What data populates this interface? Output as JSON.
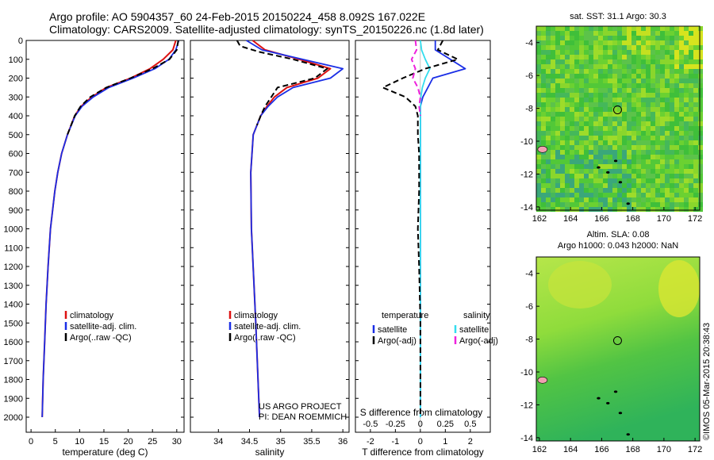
{
  "header": {
    "title_line1": "Argo profile: AO 5904357_60 24-Feb-2015 20150224_458 8.092S 167.022E",
    "title_line2": "Climatology: CARS2009. Satellite-adjusted climatology: synTS_20150226.nc (1.8d later)"
  },
  "credit": {
    "line1": "US ARGO PROJECT",
    "line2": "PI: DEAN ROEMMICH"
  },
  "watermark": "©IMOS 05-Mar-2015 20:38:43",
  "colors": {
    "climatology": "#dd1111",
    "satellite": "#1a2ee6",
    "argo": "#000000",
    "satellite_salinity": "#33ddee",
    "argo_salinity": "#ee22dd"
  },
  "maps": {
    "sst": {
      "title": "sat. SST: 31.1 Argo: 30.3"
    },
    "sla": {
      "title_line1": "Altim. SLA: 0.08",
      "title_line2": "Argo h1000: 0.043 h2000: NaN"
    },
    "xticks": [
      "162",
      "164",
      "166",
      "168",
      "170",
      "172"
    ],
    "yticks": [
      "-4",
      "-6",
      "-8",
      "-10",
      "-12",
      "-14"
    ],
    "float_position": {
      "lon": 167.022,
      "lat": -8.092
    }
  },
  "chart_data": [
    {
      "type": "line",
      "panel": "temperature",
      "xlabel": "temperature (deg C)",
      "ylabel": "",
      "xlim": [
        -1,
        31.5
      ],
      "ylim": [
        2080,
        0
      ],
      "xticks": [
        0,
        5,
        10,
        15,
        20,
        25,
        30
      ],
      "yticks": [
        0,
        100,
        200,
        300,
        400,
        500,
        600,
        700,
        800,
        900,
        1000,
        1100,
        1200,
        1300,
        1400,
        1500,
        1600,
        1700,
        1800,
        1900,
        2000
      ],
      "legend": [
        "climatology",
        "satellite-adj. clim.",
        "Argo(..raw -QC)"
      ],
      "series": [
        {
          "name": "climatology",
          "depth": [
            0,
            50,
            100,
            150,
            200,
            250,
            300,
            350,
            400,
            500,
            600,
            700,
            800,
            1000,
            1200,
            1400,
            1600,
            1800,
            2000
          ],
          "values": [
            29.8,
            29.2,
            27.2,
            24.5,
            20.5,
            15.5,
            12.5,
            10.3,
            9.0,
            7.5,
            6.3,
            5.5,
            4.9,
            4.0,
            3.5,
            3.1,
            2.8,
            2.5,
            2.3
          ]
        },
        {
          "name": "satellite-adj. clim.",
          "depth": [
            0,
            50,
            100,
            150,
            200,
            250,
            300,
            350,
            400,
            500,
            600,
            700,
            800,
            1000,
            1200,
            1400,
            1600,
            1800,
            2000
          ],
          "values": [
            30.4,
            29.8,
            28.4,
            25.5,
            21.0,
            16.0,
            12.8,
            10.5,
            9.1,
            7.5,
            6.3,
            5.5,
            4.9,
            4.0,
            3.5,
            3.1,
            2.8,
            2.5,
            2.3
          ]
        },
        {
          "name": "Argo(..raw -QC)",
          "depth": [
            0,
            50,
            100,
            150,
            200,
            250,
            300,
            350,
            400,
            500
          ],
          "values": [
            30.3,
            30.0,
            28.5,
            25.0,
            20.5,
            15.5,
            12.2,
            10.2,
            9.0,
            7.5
          ]
        }
      ]
    },
    {
      "type": "line",
      "panel": "salinity",
      "xlabel": "salinity",
      "ylabel": "",
      "xlim": [
        33.55,
        36.1
      ],
      "ylim": [
        2080,
        0
      ],
      "xticks": [
        34,
        34.5,
        35,
        35.5,
        36
      ],
      "legend": [
        "climatology",
        "satellite-adj. clim.",
        "Argo(..raw -QC)"
      ],
      "series": [
        {
          "name": "climatology",
          "depth": [
            0,
            50,
            100,
            150,
            200,
            250,
            300,
            350,
            400,
            500,
            700,
            1000,
            1500,
            2000
          ],
          "values": [
            34.55,
            34.75,
            35.3,
            35.8,
            35.6,
            35.1,
            34.9,
            34.78,
            34.68,
            34.56,
            34.52,
            34.53,
            34.6,
            34.66
          ]
        },
        {
          "name": "satellite-adj. clim.",
          "depth": [
            0,
            50,
            100,
            150,
            200,
            250,
            300,
            350,
            400,
            500,
            700,
            1000,
            1500,
            2000
          ],
          "values": [
            34.45,
            34.7,
            35.35,
            36.0,
            35.8,
            35.2,
            34.95,
            34.8,
            34.68,
            34.56,
            34.52,
            34.53,
            34.6,
            34.66
          ]
        },
        {
          "name": "Argo(..raw -QC)",
          "depth": [
            0,
            30,
            60,
            100,
            150,
            200,
            250,
            300,
            350,
            400,
            450
          ],
          "values": [
            34.3,
            34.35,
            34.65,
            35.2,
            35.75,
            35.55,
            34.95,
            34.85,
            34.75,
            34.68,
            34.62
          ]
        }
      ]
    },
    {
      "type": "line",
      "panel": "difference",
      "xlabel": "T difference from climatology",
      "xlabel_top": "S difference from climatology",
      "xlim": [
        -2.6,
        2.8
      ],
      "ylim": [
        2080,
        0
      ],
      "xticks": [
        -2,
        -1,
        0,
        1,
        2
      ],
      "xticks_top": [
        -0.5,
        -0.25,
        0,
        0.25,
        0.5
      ],
      "legend_headers": [
        "temperature",
        "salinity"
      ],
      "legend": [
        "satellite",
        "Argo(-adj)",
        "satellite",
        "Argo(-adj)"
      ],
      "series": [
        {
          "name": "satellite",
          "variable": "temperature",
          "depth": [
            0,
            50,
            100,
            150,
            200,
            250,
            300,
            350,
            400,
            600,
            800,
            1000,
            1500,
            2000
          ],
          "values": [
            0.6,
            0.6,
            1.2,
            1.8,
            0.5,
            0.3,
            0.1,
            0.0,
            0.0,
            0.0,
            0.0,
            0.0,
            0.0,
            0.0
          ]
        },
        {
          "name": "satellite",
          "variable": "salinity",
          "depth": [
            0,
            50,
            100,
            150,
            200,
            250,
            300,
            400,
            600,
            1000,
            2000
          ],
          "values": [
            0.0,
            0.05,
            0.2,
            0.38,
            0.2,
            0.08,
            0.02,
            0.0,
            0.0,
            0.0,
            0.0
          ]
        },
        {
          "name": "Argo(-adj)",
          "variable": "temperature",
          "depth": [
            0,
            50,
            100,
            150,
            200,
            250,
            300,
            350,
            400,
            500,
            600,
            800,
            1000,
            1200,
            1500,
            1800,
            2000
          ],
          "values": [
            0.9,
            0.7,
            1.5,
            0.2,
            -0.7,
            -1.5,
            -0.6,
            -0.2,
            -0.1,
            -0.1,
            -0.05,
            -0.05,
            -0.1,
            -0.05,
            0.0,
            0.0,
            0.0
          ]
        },
        {
          "name": "Argo(-adj)",
          "variable": "salinity",
          "depth": [
            0,
            50,
            100,
            150,
            200,
            250,
            300,
            350,
            400
          ],
          "values": [
            -0.2,
            -0.15,
            -0.35,
            -0.2,
            -0.3,
            -0.1,
            0.0,
            -0.05,
            0.0
          ]
        }
      ]
    }
  ]
}
